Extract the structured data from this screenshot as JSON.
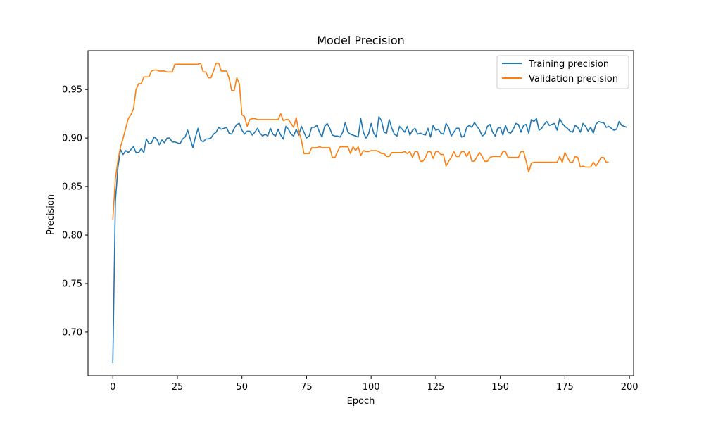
{
  "chart_data": {
    "type": "line",
    "title": "Model Precision",
    "xlabel": "Epoch",
    "ylabel": "Precision",
    "xlim": [
      -9.6,
      201.6
    ],
    "ylim": [
      0.655,
      0.99
    ],
    "xticks": [
      0,
      25,
      50,
      75,
      100,
      125,
      150,
      175,
      200
    ],
    "yticks": [
      0.7,
      0.75,
      0.8,
      0.85,
      0.9,
      0.95
    ],
    "xtick_labels": [
      "0",
      "25",
      "50",
      "75",
      "100",
      "125",
      "150",
      "175",
      "200"
    ],
    "ytick_labels": [
      "0.70",
      "0.75",
      "0.80",
      "0.85",
      "0.90",
      "0.95"
    ],
    "grid": false,
    "legend_position": "top-right",
    "series": [
      {
        "name": "Training precision",
        "color": "#1f77b4",
        "x_start": 0,
        "x_step": 1,
        "values": [
          0.668,
          0.835,
          0.87,
          0.888,
          0.883,
          0.887,
          0.885,
          0.888,
          0.891,
          0.885,
          0.885,
          0.889,
          0.885,
          0.899,
          0.894,
          0.895,
          0.901,
          0.899,
          0.893,
          0.898,
          0.895,
          0.9,
          0.9,
          0.896,
          0.896,
          0.895,
          0.894,
          0.899,
          0.901,
          0.908,
          0.899,
          0.89,
          0.901,
          0.91,
          0.898,
          0.896,
          0.899,
          0.899,
          0.9,
          0.904,
          0.906,
          0.911,
          0.909,
          0.91,
          0.911,
          0.905,
          0.904,
          0.91,
          0.914,
          0.915,
          0.908,
          0.904,
          0.907,
          0.907,
          0.903,
          0.906,
          0.91,
          0.905,
          0.902,
          0.904,
          0.902,
          0.91,
          0.904,
          0.902,
          0.909,
          0.903,
          0.899,
          0.912,
          0.909,
          0.904,
          0.902,
          0.909,
          0.903,
          0.912,
          0.906,
          0.9,
          0.902,
          0.911,
          0.911,
          0.913,
          0.906,
          0.901,
          0.912,
          0.915,
          0.91,
          0.903,
          0.902,
          0.902,
          0.901,
          0.906,
          0.916,
          0.906,
          0.904,
          0.903,
          0.902,
          0.901,
          0.92,
          0.906,
          0.9,
          0.904,
          0.915,
          0.905,
          0.901,
          0.922,
          0.918,
          0.906,
          0.905,
          0.919,
          0.91,
          0.904,
          0.902,
          0.912,
          0.909,
          0.906,
          0.912,
          0.903,
          0.908,
          0.91,
          0.904,
          0.905,
          0.904,
          0.903,
          0.91,
          0.901,
          0.913,
          0.908,
          0.909,
          0.905,
          0.904,
          0.915,
          0.911,
          0.902,
          0.906,
          0.91,
          0.91,
          0.901,
          0.902,
          0.911,
          0.913,
          0.911,
          0.916,
          0.912,
          0.908,
          0.902,
          0.904,
          0.912,
          0.914,
          0.906,
          0.902,
          0.91,
          0.911,
          0.903,
          0.913,
          0.906,
          0.905,
          0.909,
          0.915,
          0.914,
          0.906,
          0.913,
          0.914,
          0.905,
          0.919,
          0.917,
          0.92,
          0.908,
          0.91,
          0.914,
          0.917,
          0.913,
          0.914,
          0.915,
          0.908,
          0.92,
          0.915,
          0.912,
          0.91,
          0.907,
          0.906,
          0.913,
          0.911,
          0.906,
          0.915,
          0.912,
          0.907,
          0.911,
          0.905,
          0.914,
          0.917,
          0.916,
          0.916,
          0.911,
          0.912,
          0.91,
          0.908,
          0.909,
          0.917,
          0.913,
          0.912,
          0.911
        ]
      },
      {
        "name": "Validation precision",
        "color": "#ff7f0e",
        "x_start": 0,
        "x_step": 1,
        "values": [
          0.816,
          0.858,
          0.877,
          0.891,
          0.9,
          0.91,
          0.92,
          0.924,
          0.93,
          0.95,
          0.956,
          0.956,
          0.963,
          0.963,
          0.963,
          0.969,
          0.97,
          0.97,
          0.969,
          0.969,
          0.969,
          0.968,
          0.968,
          0.968,
          0.976,
          0.976,
          0.976,
          0.976,
          0.976,
          0.976,
          0.976,
          0.976,
          0.976,
          0.976,
          0.977,
          0.968,
          0.968,
          0.962,
          0.962,
          0.969,
          0.977,
          0.977,
          0.969,
          0.969,
          0.969,
          0.962,
          0.949,
          0.949,
          0.962,
          0.956,
          0.924,
          0.922,
          0.912,
          0.919,
          0.92,
          0.92,
          0.919,
          0.919,
          0.919,
          0.919,
          0.919,
          0.919,
          0.919,
          0.919,
          0.919,
          0.925,
          0.918,
          0.919,
          0.919,
          0.915,
          0.911,
          0.921,
          0.907,
          0.898,
          0.884,
          0.884,
          0.884,
          0.89,
          0.89,
          0.89,
          0.891,
          0.89,
          0.89,
          0.89,
          0.89,
          0.88,
          0.88,
          0.886,
          0.891,
          0.891,
          0.891,
          0.891,
          0.884,
          0.891,
          0.887,
          0.891,
          0.882,
          0.887,
          0.886,
          0.886,
          0.887,
          0.887,
          0.887,
          0.886,
          0.884,
          0.884,
          0.881,
          0.881,
          0.885,
          0.885,
          0.885,
          0.885,
          0.885,
          0.886,
          0.884,
          0.886,
          0.88,
          0.886,
          0.886,
          0.876,
          0.876,
          0.88,
          0.886,
          0.886,
          0.879,
          0.886,
          0.886,
          0.883,
          0.883,
          0.871,
          0.876,
          0.88,
          0.886,
          0.881,
          0.881,
          0.886,
          0.886,
          0.881,
          0.886,
          0.876,
          0.876,
          0.881,
          0.885,
          0.881,
          0.876,
          0.876,
          0.88,
          0.881,
          0.881,
          0.881,
          0.881,
          0.886,
          0.886,
          0.88,
          0.88,
          0.88,
          0.88,
          0.88,
          0.886,
          0.886,
          0.876,
          0.865,
          0.874,
          0.875,
          0.875,
          0.875,
          0.875,
          0.875,
          0.875,
          0.875,
          0.875,
          0.875,
          0.875,
          0.881,
          0.875,
          0.885,
          0.88,
          0.875,
          0.875,
          0.881,
          0.88,
          0.87,
          0.871,
          0.87,
          0.87,
          0.87,
          0.875,
          0.871,
          0.875,
          0.88,
          0.88,
          0.875,
          0.875
        ]
      }
    ]
  }
}
